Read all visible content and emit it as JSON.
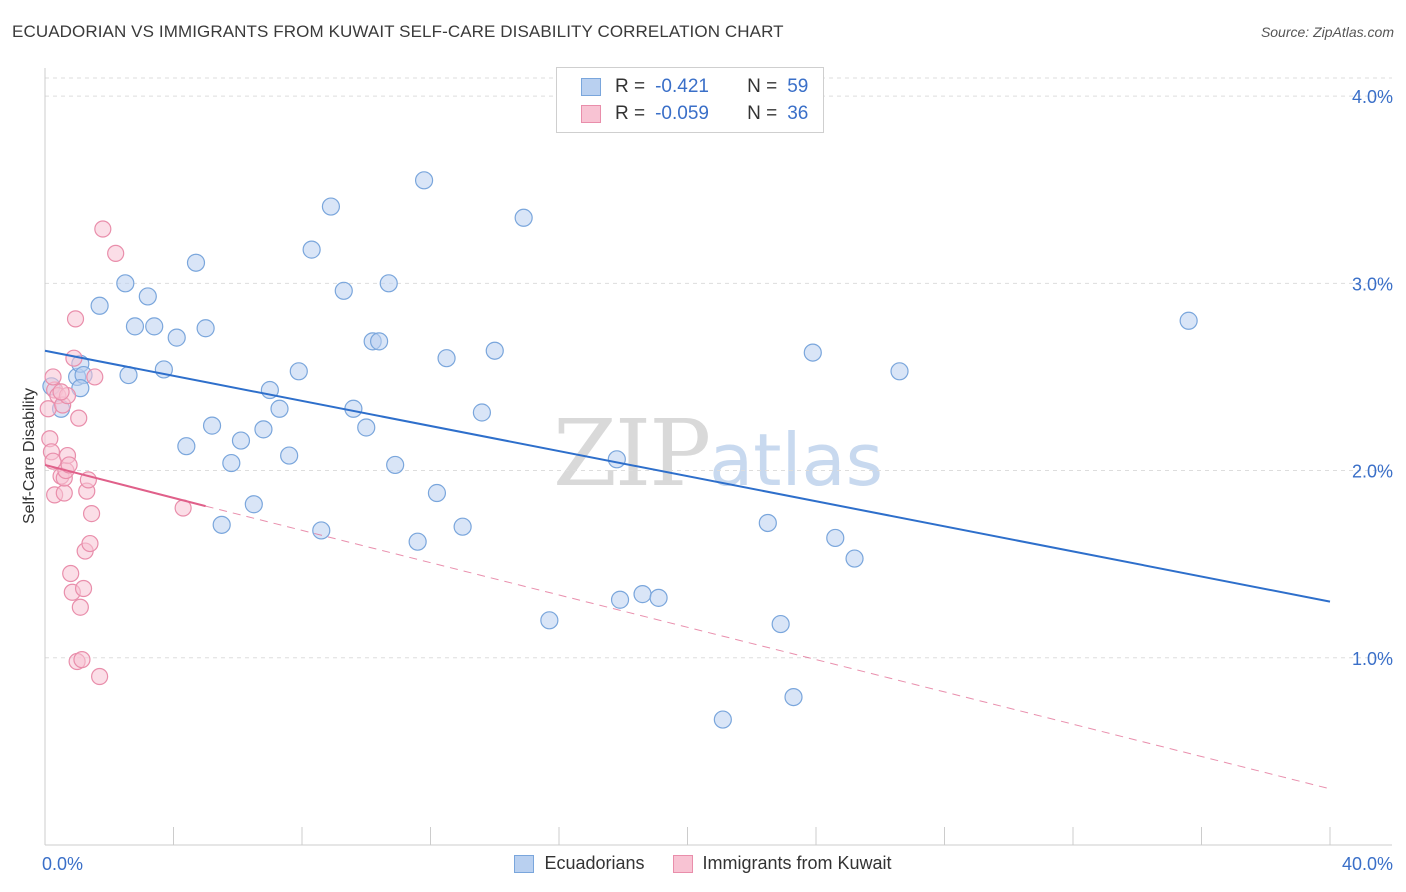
{
  "title": "ECUADORIAN VS IMMIGRANTS FROM KUWAIT SELF-CARE DISABILITY CORRELATION CHART",
  "source": "Source: ZipAtlas.com",
  "watermark": {
    "zip": "ZIP",
    "atlas": "atlas"
  },
  "legend": {
    "rows": [
      {
        "r_label": "R =",
        "r_value": "-0.421",
        "n_label": "N =",
        "n_value": "59"
      },
      {
        "r_label": "R =",
        "r_value": "-0.059",
        "n_label": "N =",
        "n_value": "36"
      }
    ]
  },
  "colors": {
    "blue_fill": "#b9d0f0",
    "blue_stroke": "#7aa6dc",
    "blue_line": "#2e6fcb",
    "pink_fill": "#f8c3d3",
    "pink_stroke": "#e98eab",
    "pink_line": "#e0608a",
    "axis_label": "#3a6fc8",
    "grid": "#dddddd"
  },
  "chart_data": {
    "type": "scatter",
    "title": "ECUADORIAN VS IMMIGRANTS FROM KUWAIT SELF-CARE DISABILITY CORRELATION CHART",
    "xlabel": "",
    "ylabel": "Self-Care Disability",
    "xlim": [
      0,
      40
    ],
    "ylim": [
      0,
      4.15
    ],
    "y_ticks": [
      1.0,
      2.0,
      3.0,
      4.0
    ],
    "y_tick_labels": [
      "1.0%",
      "2.0%",
      "3.0%",
      "4.0%"
    ],
    "x_tick_labels": [
      "0.0%",
      "40.0%"
    ],
    "grid": true,
    "legend_position": "top-center",
    "series": [
      {
        "name": "Ecuadorians",
        "color": "#b9d0f0",
        "points": [
          [
            0.2,
            2.45
          ],
          [
            0.5,
            2.33
          ],
          [
            1.0,
            2.5
          ],
          [
            1.1,
            2.57
          ],
          [
            1.2,
            2.51
          ],
          [
            1.1,
            2.44
          ],
          [
            1.7,
            2.88
          ],
          [
            2.5,
            3.0
          ],
          [
            2.6,
            2.51
          ],
          [
            2.8,
            2.77
          ],
          [
            3.2,
            2.93
          ],
          [
            3.4,
            2.77
          ],
          [
            3.7,
            2.54
          ],
          [
            4.1,
            2.71
          ],
          [
            4.4,
            2.13
          ],
          [
            4.7,
            3.11
          ],
          [
            5.0,
            2.76
          ],
          [
            5.2,
            2.24
          ],
          [
            5.5,
            1.71
          ],
          [
            5.8,
            2.04
          ],
          [
            6.1,
            2.16
          ],
          [
            6.5,
            1.82
          ],
          [
            6.8,
            2.22
          ],
          [
            7.0,
            2.43
          ],
          [
            7.3,
            2.33
          ],
          [
            7.6,
            2.08
          ],
          [
            7.9,
            2.53
          ],
          [
            8.3,
            3.18
          ],
          [
            8.6,
            1.68
          ],
          [
            8.9,
            3.41
          ],
          [
            9.3,
            2.96
          ],
          [
            9.6,
            2.33
          ],
          [
            10.0,
            2.23
          ],
          [
            10.2,
            2.69
          ],
          [
            10.4,
            2.69
          ],
          [
            10.7,
            3.0
          ],
          [
            10.9,
            2.03
          ],
          [
            11.6,
            1.62
          ],
          [
            11.8,
            3.55
          ],
          [
            12.2,
            1.88
          ],
          [
            12.5,
            2.6
          ],
          [
            13.0,
            1.7
          ],
          [
            13.6,
            2.31
          ],
          [
            14.0,
            2.64
          ],
          [
            14.9,
            3.35
          ],
          [
            15.7,
            1.2
          ],
          [
            17.8,
            2.06
          ],
          [
            17.9,
            1.31
          ],
          [
            18.6,
            1.34
          ],
          [
            19.1,
            1.32
          ],
          [
            21.1,
            0.67
          ],
          [
            22.5,
            1.72
          ],
          [
            22.9,
            1.18
          ],
          [
            23.3,
            0.79
          ],
          [
            23.9,
            2.63
          ],
          [
            24.6,
            1.64
          ],
          [
            25.2,
            1.53
          ],
          [
            26.6,
            2.53
          ],
          [
            35.6,
            2.8
          ]
        ]
      },
      {
        "name": "Immigrants from Kuwait",
        "color": "#f8c3d3",
        "points": [
          [
            0.1,
            2.33
          ],
          [
            0.15,
            2.17
          ],
          [
            0.2,
            2.1
          ],
          [
            0.25,
            2.05
          ],
          [
            0.3,
            1.87
          ],
          [
            0.3,
            2.43
          ],
          [
            0.4,
            2.4
          ],
          [
            0.5,
            1.97
          ],
          [
            0.55,
            2.35
          ],
          [
            0.6,
            1.88
          ],
          [
            0.6,
            1.96
          ],
          [
            0.65,
            2.0
          ],
          [
            0.7,
            2.08
          ],
          [
            0.7,
            2.4
          ],
          [
            0.75,
            2.03
          ],
          [
            0.8,
            1.45
          ],
          [
            0.85,
            1.35
          ],
          [
            0.9,
            2.6
          ],
          [
            0.95,
            2.81
          ],
          [
            1.0,
            0.98
          ],
          [
            1.05,
            2.28
          ],
          [
            1.1,
            1.27
          ],
          [
            1.15,
            0.99
          ],
          [
            1.2,
            1.37
          ],
          [
            1.25,
            1.57
          ],
          [
            1.3,
            1.89
          ],
          [
            1.35,
            1.95
          ],
          [
            1.4,
            1.61
          ],
          [
            1.45,
            1.77
          ],
          [
            1.55,
            2.5
          ],
          [
            1.7,
            0.9
          ],
          [
            1.8,
            3.29
          ],
          [
            2.2,
            3.16
          ],
          [
            4.3,
            1.8
          ],
          [
            0.25,
            2.5
          ],
          [
            0.5,
            2.42
          ]
        ]
      }
    ],
    "trendlines": [
      {
        "series": "Ecuadorians",
        "x": [
          0,
          40
        ],
        "y": [
          2.64,
          1.3
        ],
        "style": "solid"
      },
      {
        "series": "Immigrants from Kuwait",
        "x": [
          0,
          5
        ],
        "y": [
          2.03,
          1.81
        ],
        "style": "solid"
      },
      {
        "series": "Immigrants from Kuwait",
        "x": [
          5,
          40
        ],
        "y": [
          1.81,
          0.3
        ],
        "style": "dashed"
      }
    ]
  }
}
